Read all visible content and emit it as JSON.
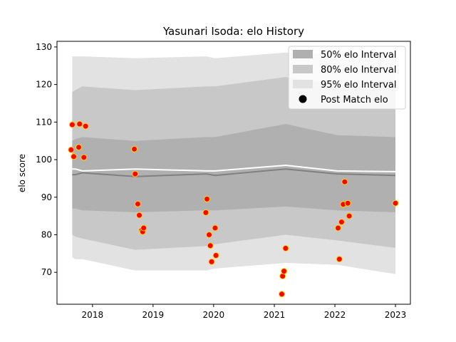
{
  "chart_data": {
    "type": "scatter",
    "title": "Yasunari Isoda: elo History",
    "xlabel": "",
    "ylabel": "elo score",
    "xlim": [
      "2017-06-01",
      "2023-04-01"
    ],
    "ylim": [
      61.5,
      131.5
    ],
    "x_ticks": [
      "2018",
      "2019",
      "2020",
      "2021",
      "2022",
      "2023"
    ],
    "x_tick_dates": [
      "2018-01-01",
      "2019-01-01",
      "2020-01-01",
      "2021-01-01",
      "2022-01-01",
      "2023-01-01"
    ],
    "y_ticks": [
      70,
      80,
      90,
      100,
      110,
      120,
      130
    ],
    "grid": false,
    "legend_position": "top-right",
    "legend": [
      {
        "label": "50% elo Interval",
        "kind": "band",
        "color": "#b0b0b0"
      },
      {
        "label": "80% elo Interval",
        "kind": "band",
        "color": "#c8c8c8"
      },
      {
        "label": "95% elo Interval",
        "kind": "band",
        "color": "#e2e2e2"
      },
      {
        "label": "Post Match elo",
        "kind": "marker",
        "color": "#000000"
      }
    ],
    "bands": {
      "x": [
        "2017-09-01",
        "2017-09-20",
        "2017-11-01",
        "2018-09-15",
        "2019-11-20",
        "2020-01-10",
        "2021-03-10",
        "2022-01-15",
        "2023-01-01"
      ],
      "center": [
        96.0,
        96.0,
        96.5,
        95.5,
        96.2,
        95.8,
        97.5,
        96.2,
        95.8
      ],
      "p50_low": [
        87.0,
        87.0,
        86.5,
        86.0,
        86.5,
        86.5,
        87.5,
        86.5,
        86.0
      ],
      "p50_high": [
        105.0,
        105.5,
        106.0,
        105.0,
        106.0,
        106.0,
        109.5,
        106.5,
        106.0
      ],
      "p80_low": [
        80.0,
        79.5,
        79.0,
        76.0,
        77.0,
        77.5,
        80.0,
        78.5,
        76.5
      ],
      "p80_high": [
        118.0,
        118.5,
        119.5,
        118.5,
        119.5,
        119.5,
        122.0,
        120.0,
        119.0
      ],
      "p95_low": [
        74.0,
        73.5,
        73.5,
        70.5,
        70.5,
        71.0,
        72.5,
        72.0,
        69.5
      ],
      "p95_high": [
        127.5,
        127.5,
        127.5,
        127.0,
        127.5,
        127.0,
        128.5,
        128.0,
        127.5
      ],
      "white_line": [
        97.5,
        97.5,
        97.0,
        97.5,
        97.0,
        97.0,
        98.5,
        97.0,
        96.8
      ]
    },
    "points": [
      {
        "x": "2017-08-25",
        "y": 102.6
      },
      {
        "x": "2017-09-01",
        "y": 109.3
      },
      {
        "x": "2017-09-10",
        "y": 100.8
      },
      {
        "x": "2017-10-10",
        "y": 103.3
      },
      {
        "x": "2017-10-15",
        "y": 109.5
      },
      {
        "x": "2017-11-10",
        "y": 100.6
      },
      {
        "x": "2017-11-20",
        "y": 108.9
      },
      {
        "x": "2018-09-10",
        "y": 102.8
      },
      {
        "x": "2018-09-15",
        "y": 96.2
      },
      {
        "x": "2018-10-01",
        "y": 88.2
      },
      {
        "x": "2018-10-10",
        "y": 85.2
      },
      {
        "x": "2018-10-25",
        "y": 81.2
      },
      {
        "x": "2018-10-30",
        "y": 80.8
      },
      {
        "x": "2018-11-05",
        "y": 81.8
      },
      {
        "x": "2019-11-15",
        "y": 85.9
      },
      {
        "x": "2019-11-22",
        "y": 89.5
      },
      {
        "x": "2019-12-05",
        "y": 80.0
      },
      {
        "x": "2019-12-12",
        "y": 77.1
      },
      {
        "x": "2019-12-20",
        "y": 72.8
      },
      {
        "x": "2020-01-10",
        "y": 81.8
      },
      {
        "x": "2020-01-15",
        "y": 74.5
      },
      {
        "x": "2021-02-15",
        "y": 64.2
      },
      {
        "x": "2021-02-20",
        "y": 69.0
      },
      {
        "x": "2021-02-28",
        "y": 70.3
      },
      {
        "x": "2021-03-10",
        "y": 76.4
      },
      {
        "x": "2022-01-20",
        "y": 81.8
      },
      {
        "x": "2022-01-28",
        "y": 73.5
      },
      {
        "x": "2022-02-10",
        "y": 83.4
      },
      {
        "x": "2022-02-20",
        "y": 88.1
      },
      {
        "x": "2022-03-01",
        "y": 94.1
      },
      {
        "x": "2022-03-20",
        "y": 88.4
      },
      {
        "x": "2022-03-28",
        "y": 85.0
      },
      {
        "x": "2023-01-01",
        "y": 88.4
      }
    ],
    "colors": {
      "point_fill": "#ff0000",
      "point_edge": "#ffd700",
      "center_line": "#808080",
      "upper_line": "#ffffff"
    }
  }
}
